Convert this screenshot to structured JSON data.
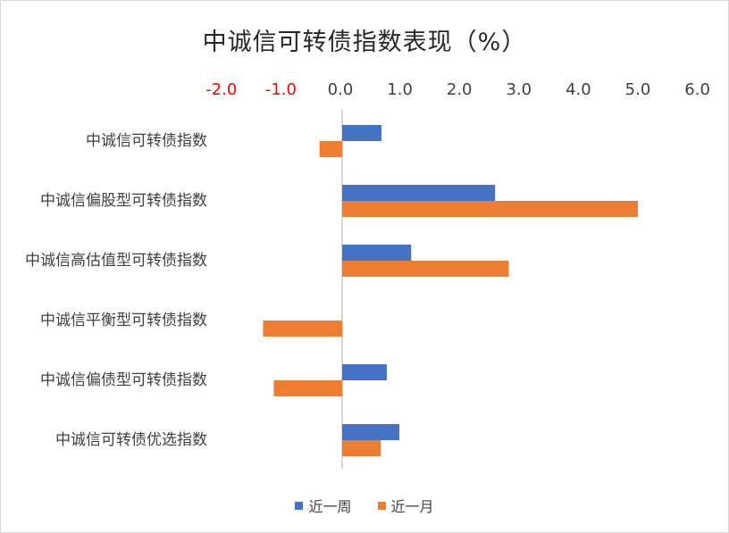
{
  "colors": {
    "week": "#4472c4",
    "month": "#ed7d31",
    "negative_tick": "#ff0000",
    "axis": "#bfbfbf"
  },
  "chart_data": {
    "type": "bar",
    "orientation": "horizontal",
    "title": "中诚信可转债指数表现（%）",
    "xlabel": "",
    "ylabel": "",
    "xlim": [
      -2.0,
      6.0
    ],
    "xticks": [
      "-2.0",
      "-1.0",
      "0.0",
      "1.0",
      "2.0",
      "3.0",
      "4.0",
      "5.0",
      "6.0"
    ],
    "x_axis_position": "top",
    "grid": false,
    "legend_position": "bottom",
    "categories": [
      "中诚信可转债指数",
      "中诚信偏股型可转债指数",
      "中诚信高估值型可转债指数",
      "中诚信平衡型可转债指数",
      "中诚信偏债型可转债指数",
      "中诚信可转债优选指数"
    ],
    "series": [
      {
        "name": "近一周",
        "values": [
          0.66,
          2.57,
          1.16,
          0.0,
          0.75,
          0.96
        ]
      },
      {
        "name": "近一月",
        "values": [
          -0.38,
          4.97,
          2.8,
          -1.33,
          -1.15,
          0.65
        ]
      }
    ]
  }
}
